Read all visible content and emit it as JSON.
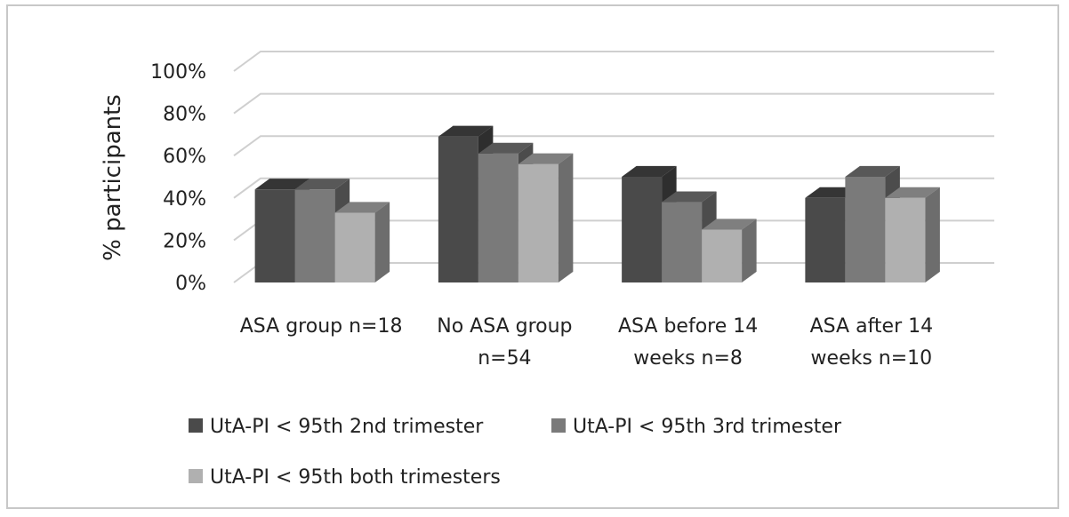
{
  "chart_data": {
    "type": "bar",
    "title": "",
    "xlabel": "",
    "ylabel": "% participants",
    "ylim": [
      0,
      100
    ],
    "y_ticks": [
      "0%",
      "20%",
      "40%",
      "60%",
      "80%",
      "100%"
    ],
    "grid": true,
    "legend_position": "bottom",
    "categories": [
      [
        "ASA group n=18"
      ],
      [
        "No ASA group",
        "n=54"
      ],
      [
        "ASA before 14",
        "weeks n=8"
      ],
      [
        "ASA after 14",
        "weeks n=10"
      ]
    ],
    "series": [
      {
        "name": "UtA-PI < 95th 2nd trimester",
        "values": [
          44,
          69,
          50,
          40
        ],
        "color": "#4a4a4a"
      },
      {
        "name": "UtA-PI < 95th 3rd trimester",
        "values": [
          44,
          61,
          38,
          50
        ],
        "color": "#7a7a7a"
      },
      {
        "name": "UtA-PI < 95th both trimesters",
        "values": [
          33,
          56,
          25,
          40
        ],
        "color": "#b0b0b0"
      }
    ]
  }
}
